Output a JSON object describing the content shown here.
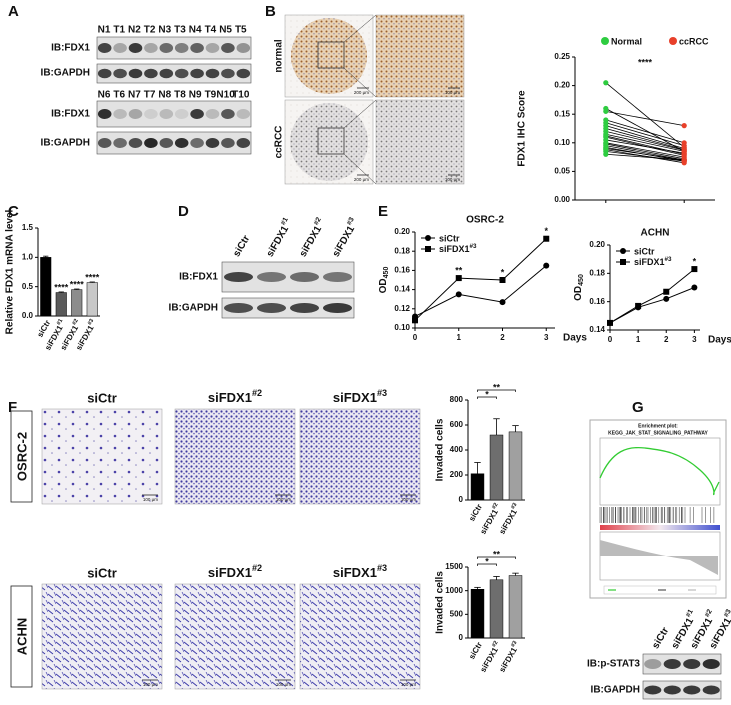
{
  "panel_letters": [
    "A",
    "B",
    "C",
    "D",
    "E",
    "F",
    "G"
  ],
  "panel_a": {
    "lanes_top": [
      "N1",
      "T1",
      "N2",
      "T2",
      "N3",
      "T3",
      "N4",
      "T4",
      "N5",
      "T5"
    ],
    "lanes_bottom": [
      "N6",
      "T6",
      "N7",
      "T7",
      "N8",
      "T8",
      "N9",
      "T9",
      "N10",
      "T10"
    ],
    "blots_top": [
      "IB:FDX1",
      "IB:GAPDH"
    ],
    "blots_bottom": [
      "IB:FDX1",
      "IB:GAPDH"
    ]
  },
  "panel_b": {
    "rows": [
      "normal",
      "ccRCC"
    ],
    "scale_bars": [
      "200 μm",
      "100 μm",
      "200 μm",
      "100 μm"
    ]
  },
  "panel_d": {
    "lanes": [
      "siCtr",
      "siFDX1#1",
      "siFDX1#2",
      "siFDX1#3"
    ],
    "blots": [
      "IB:FDX1",
      "IB:GAPDH"
    ]
  },
  "panel_f": {
    "rows": [
      "OSRC-2",
      "ACHN"
    ],
    "columns": [
      [
        "siCtr",
        "siFDX1#2",
        "siFDX1#3"
      ],
      [
        "siCtr",
        "siFDX1#2",
        "siFDX1#3"
      ]
    ],
    "scale_bars": [
      [
        "100 μm",
        "100 μm",
        "100 μm"
      ],
      [
        "100 μm",
        "100 μm",
        "100 μm"
      ]
    ]
  },
  "panel_g": {
    "enrichment_title": "Enrichment plot:",
    "gene_set": "KEGG_JAK_STAT_SIGNALING_PATHWAY",
    "lanes": [
      "siCtr",
      "siFDX1#1",
      "siFDX1#2",
      "siFDX1#3"
    ],
    "blots": [
      "IB:p-STAT3",
      "IB:GAPDH"
    ]
  },
  "chart_data": [
    {
      "type": "paired",
      "ylabel": "FDX1 IHC Score",
      "ylim": [
        0,
        0.25
      ],
      "yticks": [
        {
          "value": 0,
          "label": "0.00"
        },
        0.05,
        {
          "value": 0.1,
          "label": "0.10"
        },
        0.15,
        {
          "value": 0.2,
          "label": "0.20"
        },
        0.25
      ],
      "series": [
        {
          "name": "Normal",
          "color": "#2ecc40",
          "values": [
            0.205,
            0.16,
            0.155,
            0.14,
            0.135,
            0.13,
            0.125,
            0.12,
            0.115,
            0.112,
            0.11,
            0.105,
            0.1,
            0.098,
            0.095,
            0.092,
            0.09,
            0.088,
            0.085,
            0.08
          ]
        },
        {
          "name": "ccRCC",
          "color": "#e8402a",
          "values": [
            0.092,
            0.085,
            0.13,
            0.1,
            0.095,
            0.09,
            0.088,
            0.087,
            0.085,
            0.08,
            0.078,
            0.082,
            0.075,
            0.072,
            0.07,
            0.068,
            0.07,
            0.065,
            0.068,
            0.07
          ]
        }
      ],
      "annotation": "****"
    },
    {
      "type": "bar",
      "ylabel": "Relative FDX1 mRNA level",
      "ylim": [
        0,
        1.5
      ],
      "yticks": [
        {
          "value": 0,
          "label": "0.0"
        },
        0.5,
        {
          "value": 1,
          "label": "1.0"
        },
        1.5
      ],
      "categories": [
        "siCtr",
        "siFDX1#1",
        "siFDX1#2",
        "siFDX1#3"
      ],
      "values": [
        1,
        0.4,
        0.45,
        0.57
      ],
      "errors": [
        0.02,
        0.01,
        0.01,
        0.01
      ],
      "colors": [
        "#000000",
        "#5a5a5a",
        "#8c8c8c",
        "#c8c8c8"
      ],
      "significance": [
        null,
        "****",
        "****",
        "****"
      ]
    },
    {
      "type": "line",
      "title": "OSRC-2",
      "ylabel": "OD",
      "ylabel_subscript": "450",
      "xlabel": "Days",
      "x": [
        0,
        1,
        2,
        3
      ],
      "xlim": [
        0,
        3.2
      ],
      "xticks": [
        0,
        1,
        2,
        3
      ],
      "ylim": [
        0.1,
        0.2
      ],
      "yticks": [
        {
          "value": 0.1,
          "label": "0.10"
        },
        0.12,
        0.14,
        0.16,
        0.18,
        {
          "value": 0.2,
          "label": "0.20"
        }
      ],
      "series": [
        {
          "name": "siCtr",
          "color": "#000000",
          "marker": "circle",
          "values": [
            0.112,
            0.135,
            0.127,
            0.165
          ]
        },
        {
          "name": "siFDX1#3",
          "color": "#000000",
          "marker": "square",
          "values": [
            0.108,
            0.152,
            0.15,
            0.193
          ]
        }
      ],
      "significance": [
        null,
        "**",
        "*",
        "*"
      ]
    },
    {
      "type": "line",
      "title": "ACHN",
      "ylabel": "OD",
      "ylabel_subscript": "450",
      "xlabel": "Days",
      "x": [
        0,
        1,
        2,
        3
      ],
      "xlim": [
        0,
        3.2
      ],
      "xticks": [
        0,
        1,
        2,
        3
      ],
      "ylim": [
        0.14,
        0.2
      ],
      "yticks": [
        0.14,
        0.16,
        0.18,
        {
          "value": 0.2,
          "label": "0.20"
        }
      ],
      "series": [
        {
          "name": "siCtr",
          "color": "#000000",
          "marker": "circle",
          "values": [
            0.145,
            0.156,
            0.162,
            0.17
          ]
        },
        {
          "name": "siFDX1#3",
          "color": "#000000",
          "marker": "square",
          "values": [
            0.145,
            0.157,
            0.167,
            0.183
          ]
        }
      ],
      "significance": [
        null,
        null,
        null,
        "*"
      ]
    },
    {
      "type": "bar",
      "ylabel": "Invaded cells",
      "ylim": [
        0,
        800
      ],
      "yticks": [
        0,
        200,
        400,
        600,
        800
      ],
      "categories": [
        "siCtr",
        "siFDX1#2",
        "siFDX1#3"
      ],
      "values": [
        210,
        520,
        545
      ],
      "errors": [
        90,
        130,
        50
      ],
      "colors": [
        "#000000",
        "#6e6e6e",
        "#a0a0a0"
      ],
      "brackets": [
        "**",
        "*"
      ]
    },
    {
      "type": "bar",
      "ylabel": "Invaded cells",
      "ylim": [
        0,
        1500
      ],
      "yticks": [
        0,
        500,
        1000,
        1500
      ],
      "categories": [
        "siCtr",
        "siFDX1#2",
        "siFDX1#3"
      ],
      "values": [
        1030,
        1230,
        1320
      ],
      "errors": [
        40,
        70,
        50
      ],
      "colors": [
        "#000000",
        "#6e6e6e",
        "#a0a0a0"
      ],
      "brackets": [
        "**",
        "*"
      ]
    }
  ]
}
